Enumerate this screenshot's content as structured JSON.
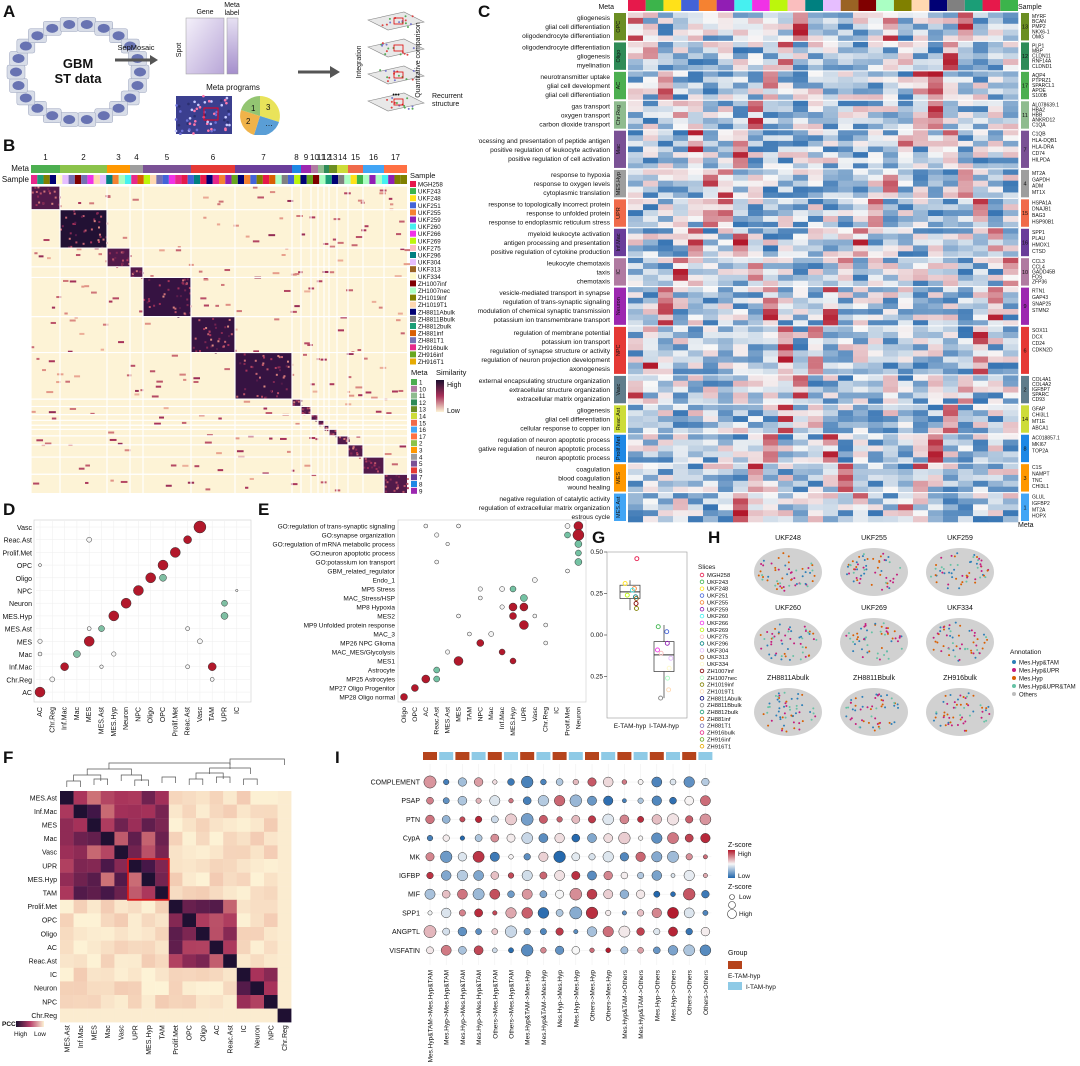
{
  "panel_letters": [
    "A",
    "B",
    "C",
    "D",
    "E",
    "F",
    "G",
    "H",
    "I"
  ],
  "panelA": {
    "center_title": "GBM",
    "center_subtitle": "ST data",
    "arrow_label": "SepMosaic",
    "matrix_labels": {
      "gene": "Gene",
      "meta": "Meta",
      "meta2": "label",
      "spot": "Spot"
    },
    "meta_programs": "Meta programs",
    "pie_numbers": [
      "1",
      "2",
      "3",
      "…"
    ],
    "integration": "Integration",
    "quantitative": "Quantitative comparison",
    "recurrent": "Recurrent",
    "recurrent2": "structure",
    "dots": "•••"
  },
  "panelB": {
    "meta_row": "Meta",
    "sample_row": "Sample",
    "cluster_numbers": [
      "1",
      "2",
      "3",
      "4",
      "5",
      "6",
      "7",
      "8",
      "9",
      "10",
      "11",
      "12",
      "13",
      "14",
      "15",
      "16",
      "17"
    ],
    "sample_legend_title": "Sample",
    "samples": [
      "MGH258",
      "UKF243",
      "UKF248",
      "UKF251",
      "UKF255",
      "UKF259",
      "UKF260",
      "UKF266",
      "UKF269",
      "UKF275",
      "UKF296",
      "UKF304",
      "UKF313",
      "UKF334",
      "ZH1007inf",
      "ZH1007nec",
      "ZH1019inf",
      "ZH1019T1",
      "ZH8811Abulk",
      "ZH8811Bbulk",
      "ZH8812bulk",
      "ZH881inf",
      "ZH881T1",
      "ZH916bulk",
      "ZH916inf",
      "ZH916T1"
    ],
    "meta_legend_title": "Meta",
    "meta_legend": [
      "1",
      "10",
      "11",
      "12",
      "13",
      "14",
      "15",
      "16",
      "17",
      "2",
      "3",
      "4",
      "5",
      "6",
      "7",
      "8",
      "9"
    ],
    "similarity_title": "Similarity",
    "similarity_high": "High",
    "similarity_low": "Low",
    "colors": {
      "high": "#1c1030",
      "mid": "#a8325a",
      "low": "#fdf3d6"
    }
  },
  "panelC": {
    "meta_header": "Meta",
    "sample_header": "Sample",
    "meta_footer": "Meta",
    "groups": [
      {
        "tag": "OPC",
        "color": "#6b8e23",
        "num": "13",
        "go": [
          "gliogenesis",
          "glial cell differentiation",
          "oligodendrocyte differentiation"
        ],
        "genes": [
          "MYRF",
          "BCAN",
          "PMP2",
          "NKX6-1",
          "OMG"
        ]
      },
      {
        "tag": "Oligo",
        "color": "#2e8b57",
        "num": "12",
        "go": [
          "oligodendrocyte differentiation",
          "gliogenesis",
          "myelination"
        ],
        "genes": [
          "PLP1",
          "MBP",
          "CLDN11",
          "RNF14A",
          "CLDND1"
        ]
      },
      {
        "tag": "AC",
        "color": "#4caf50",
        "num": "17",
        "go": [
          "neurotransmitter uptake",
          "glial cell development",
          "glial cell differentiation"
        ],
        "genes": [
          "AQP4",
          "PTPRZ1",
          "SPARCL1",
          "APOE",
          "S100B"
        ]
      },
      {
        "tag": "Chr.Reg",
        "color": "#8fbc8f",
        "num": "11",
        "go": [
          "gas transport",
          "oxygen transport",
          "carbon dioxide transport"
        ],
        "genes": [
          "AL078639.1",
          "HBA2",
          "HBB",
          "ANKRD12",
          "C1QA"
        ]
      },
      {
        "tag": "Mac",
        "color": "#7a5195",
        "num": "7",
        "go": [
          "antigen processing and presentation of peptide antigen",
          "positive regulation of leukocyte activation",
          "positive regulation of cell activation"
        ],
        "genes": [
          "C1QB",
          "HLA-DQB1",
          "HLA-DRA",
          "CD74",
          "HILPDA"
        ]
      },
      {
        "tag": "MES.Hyp",
        "color": "#9e9e9e",
        "num": "4",
        "go": [
          "response to hypoxia",
          "response to oxygen levels",
          "cytoplasmic translation"
        ],
        "genes": [
          "MT2A",
          "GAPDH",
          "ADM",
          "MT1X"
        ]
      },
      {
        "tag": "UPR",
        "color": "#f06a4a",
        "num": "15",
        "go": [
          "response to topologically incorrect protein",
          "response to unfolded protein",
          "response to endoplasmic reticulum stress"
        ],
        "genes": [
          "HSPA1A",
          "DNAJB1",
          "BAG3",
          "HSP90B1"
        ]
      },
      {
        "tag": "Inf.Mac",
        "color": "#6a3d9a",
        "num": "16",
        "go": [
          "myeloid leukocyte activation",
          "antigen processing and presentation",
          "positive regulation of cytokine production"
        ],
        "genes": [
          "SPP1",
          "PLAU",
          "HMOX1",
          "CTSD"
        ]
      },
      {
        "tag": "IC",
        "color": "#b07aa1",
        "num": "10",
        "go": [
          "leukocyte chemotaxis",
          "taxis",
          "chemotaxis"
        ],
        "genes": [
          "CCL3",
          "CCL4",
          "GADD45B",
          "FOS",
          "ZFP36"
        ]
      },
      {
        "tag": "Neuron",
        "color": "#9c27b0",
        "num": "9",
        "go": [
          "vesicle-mediated transport in synapse",
          "regulation of trans-synaptic signaling",
          "modulation of chemical synaptic transmission",
          "potassium ion transmembrane transport"
        ],
        "genes": [
          "RTN1",
          "GAP43",
          "SNAP25",
          "STMN2"
        ]
      },
      {
        "tag": "NPC",
        "color": "#e53935",
        "num": "6",
        "go": [
          "regulation of membrane potential",
          "potassium ion transport",
          "regulation of synapse structure or activity",
          "regulation of neuron projection development",
          "axonogenesis"
        ],
        "genes": [
          "SOX11",
          "DCX",
          "CD24",
          "CDKN2D"
        ]
      },
      {
        "tag": "Vasc",
        "color": "#607d8b",
        "num": "2",
        "go": [
          "external encapsulating structure organization",
          "extracellular structure organization",
          "extracellular matrix organization"
        ],
        "genes": [
          "COL4A1",
          "COL4A2",
          "IGFBP7",
          "SPARC",
          "CD93"
        ]
      },
      {
        "tag": "Reac.Ast",
        "color": "#cddc39",
        "num": "14",
        "go": [
          "gliogenesis",
          "glial cell differentiation",
          "cellular response to copper ion"
        ],
        "genes": [
          "GFAP",
          "CHI3L1",
          "MT1E",
          "ABCA1"
        ]
      },
      {
        "tag": "Prolif.Met",
        "color": "#1e88e5",
        "num": "8",
        "go": [
          "regulation of neuron apoptotic process",
          "negative regulation of neuron apoptotic process",
          "neuron apoptotic process"
        ],
        "genes": [
          "AC018857.1",
          "MKI67",
          "TOP2A"
        ]
      },
      {
        "tag": "MES",
        "color": "#ff9800",
        "num": "3",
        "go": [
          "coagulation",
          "blood coagulation",
          "wound healing"
        ],
        "genes": [
          "C1S",
          "NAMPT",
          "TNC",
          "CHI3L1"
        ]
      },
      {
        "tag": "MES.Ast",
        "color": "#42a5f5",
        "num": "1",
        "go": [
          "negative regulation of catalytic activity",
          "regulation of extracellular matrix organization",
          "estrous cycle"
        ],
        "genes": [
          "GLUL",
          "IGFBP2",
          "MT2A",
          "HOPX"
        ]
      }
    ]
  },
  "panelD": {
    "rows": [
      "Vasc",
      "Reac.Ast",
      "Prolif.Met",
      "OPC",
      "Oligo",
      "NPC",
      "Neuron",
      "MES.Hyp",
      "MES.Ast",
      "MES",
      "Mac",
      "Inf.Mac",
      "Chr.Reg",
      "AC"
    ],
    "cols": [
      "AC",
      "Chr.Reg",
      "Inf.Mac",
      "Mac",
      "MES",
      "MES.Ast",
      "MES.Hyp",
      "Neuron",
      "NPC",
      "Oligo",
      "OPC",
      "Prolif.Met",
      "Reac.Ast",
      "Vasc",
      "TAM",
      "UPR",
      "IC"
    ]
  },
  "panelE": {
    "rows": [
      "GO:regulation of trans-synaptic signaling",
      "GO:synapse organization",
      "GO:regulation of mRNA metabolic process",
      "GO:neuron apoptotic process",
      "GO:potassium ion transport",
      "GBM_related_regulator",
      "Endo_1",
      "MP5 Stress",
      "MAC_Stress/HSP",
      "MP8 Hypoxia",
      "MES2",
      "MP9 Unfolded protein response",
      "MAC_3",
      "MP26 NPC Glioma",
      "MAC_MES/Glycolysis",
      "MES1",
      "Astrocyte",
      "MP25 Astrocytes",
      "MP27 Oligo Progenitor",
      "MP28 Oligo normal"
    ],
    "cols": [
      "Oligo",
      "OPC",
      "AC",
      "Reac.Ast",
      "MES.Ast",
      "MES",
      "TAM",
      "NPC",
      "Mac",
      "Inf.Mac",
      "MES.Hyp",
      "UPR",
      "Vasc",
      "Chr.Reg",
      "IC",
      "Prolif.Met",
      "Neuron"
    ]
  },
  "panelF": {
    "labels": [
      "MES.Ast",
      "Inf.Mac",
      "MES",
      "Mac",
      "Vasc",
      "UPR",
      "MES.Hyp",
      "TAM",
      "Prolif.Met",
      "OPC",
      "Oligo",
      "AC",
      "Reac.Ast",
      "IC",
      "Neuron",
      "NPC",
      "Chr.Reg"
    ],
    "legend_title": "PCC",
    "legend_high": "High",
    "legend_low": "Low",
    "highlight_color": "#d7191c"
  },
  "panelG": {
    "ylim": [
      -0.5,
      0.5
    ],
    "yticks": [
      "0.50",
      "0.25",
      "0.00",
      "-0.25"
    ],
    "groups": [
      "E-TAM-hyp",
      "I-TAM-hyp"
    ],
    "legend_title": "Slices",
    "slices": [
      "MGH258",
      "UKF243",
      "UKF248",
      "UKF251",
      "UKF255",
      "UKF259",
      "UKF260",
      "UKF266",
      "UKF269",
      "UKF275",
      "UKF296",
      "UKF304",
      "UKF313",
      "UKF334",
      "ZH1007inf",
      "ZH1007nec",
      "ZH1019inf",
      "ZH1019T1",
      "ZH8811Abulk",
      "ZH8811Bbulk",
      "ZH8812bulk",
      "ZH881inf",
      "ZH881T1",
      "ZH916bulk",
      "ZH916inf",
      "ZH916T1"
    ]
  },
  "panelH": {
    "titles": [
      "UKF248",
      "UKF255",
      "UKF259",
      "UKF260",
      "UKF269",
      "UKF334",
      "ZH8811Abulk",
      "ZH8811Bbulk",
      "ZH916bulk"
    ],
    "annotation_title": "Annotation",
    "annotations": [
      {
        "label": "Mes.Hyp&TAM",
        "color": "#2c7fb8"
      },
      {
        "label": "Mes.Hyp&UPR",
        "color": "#c51b7d"
      },
      {
        "label": "Mes.Hyp",
        "color": "#d95f02"
      },
      {
        "label": "Mes.Hyp&UPR&TAM",
        "color": "#66c2a5"
      },
      {
        "label": "Others",
        "color": "#bdbdbd"
      }
    ]
  },
  "panelI": {
    "rows": [
      "COMPLEMENT",
      "PSAP",
      "PTN",
      "CypA",
      "MK",
      "IGFBP",
      "MIF",
      "SPP1",
      "ANGPTL",
      "VISFATIN"
    ],
    "cols": [
      "Mes.Hyp&TAM->Mes.Hyp&TAM",
      "Mes.Hyp->Mes.Hyp&TAM",
      "Mes.Hyp->Mes.Hyp&TAM",
      "Mes.Hyp->Mes.Hyp&TAM",
      "Others->Mes.Hyp&TAM",
      "Others->Mes.Hyp&TAM",
      "Mes.Hyp&TAM->Mes.Hyp",
      "Mes.Hyp&TAM->Mes.Hyp",
      "Mes.Hyp->Mes.Hyp",
      "Mes.Hyp->Mes.Hyp",
      "Others->Mes.Hyp",
      "Others->Mes.Hyp",
      "Mes.Hyp&TAM->Others",
      "Mes.Hyp&TAM->Others",
      "Mes.Hyp->Others",
      "Mes.Hyp->Others",
      "Others->Others",
      "Others->Others"
    ],
    "zscore_title": "Z-score",
    "zscore_high": "High",
    "zscore_low": "Low",
    "size_title": "Z-score",
    "size_low": "Low",
    "size_high": "High",
    "group_title": "Group",
    "groups": [
      {
        "label": "E-TAM-hyp",
        "color": "#b5441c"
      },
      {
        "label": "I-TAM-hyp",
        "color": "#8ecae6"
      }
    ]
  }
}
